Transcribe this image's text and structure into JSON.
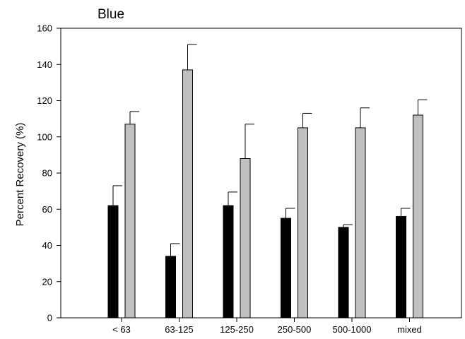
{
  "chart_data": {
    "type": "bar",
    "title": "Blue",
    "xlabel": "",
    "ylabel": "Percent Recovery (%)",
    "ylim": [
      0,
      160
    ],
    "yticks": [
      0,
      20,
      40,
      60,
      80,
      100,
      120,
      140,
      160
    ],
    "categories": [
      "< 63",
      "63-125",
      "125-250",
      "250-500",
      "500-1000",
      "mixed"
    ],
    "series": [
      {
        "color": "#000000",
        "values": [
          62,
          34,
          62,
          55,
          50,
          56
        ],
        "error_upper": [
          73,
          41,
          69.5,
          60.5,
          51.5,
          60.5
        ]
      },
      {
        "color": "#c0c0c0",
        "values": [
          107,
          137,
          88,
          105,
          105,
          112
        ],
        "error_upper": [
          114,
          151,
          107,
          113,
          116,
          120.5
        ]
      }
    ],
    "grid": false,
    "legend": "none"
  }
}
